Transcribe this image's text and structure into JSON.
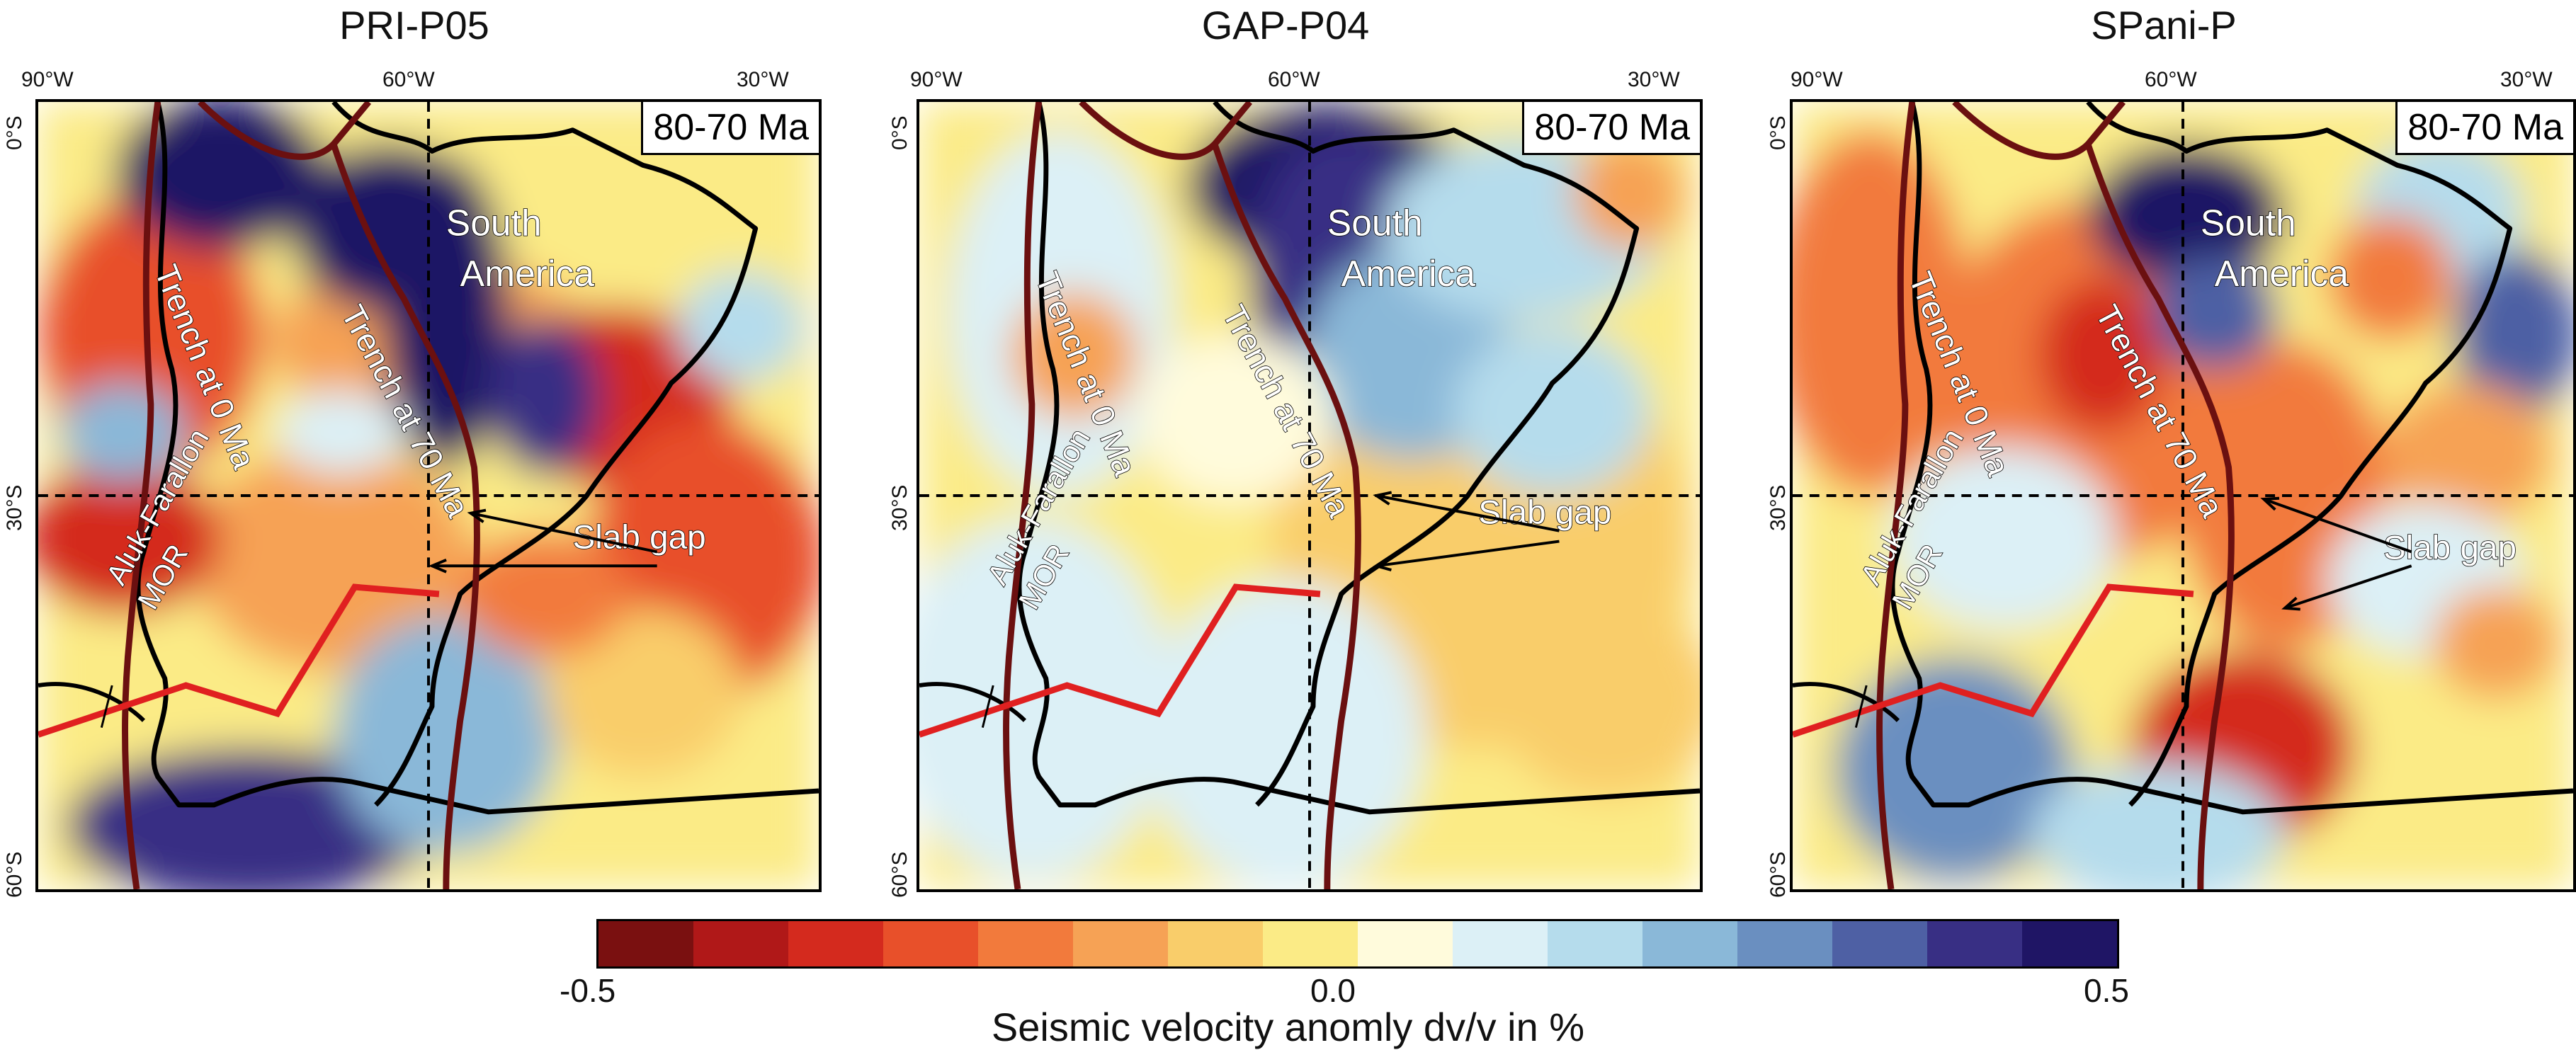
{
  "panels": [
    {
      "title": "PRI-P05",
      "period": "80-70 Ma",
      "lon_labels": [
        "90°W",
        "60°W",
        "30°W"
      ],
      "lat_labels": [
        "0°S",
        "30°S",
        "60°S"
      ],
      "labels": {
        "trench0": "Trench at 0 Ma",
        "trench70": "Trench at 70 Ma",
        "continent1": "South",
        "continent2": "America",
        "slab_gap": "Slab gap",
        "ridge1": "Aluk-Farallon",
        "ridge2": "MOR"
      }
    },
    {
      "title": "GAP-P04",
      "period": "80-70 Ma",
      "lon_labels": [
        "90°W",
        "60°W",
        "30°W"
      ],
      "lat_labels": [
        "0°S",
        "30°S",
        "60°S"
      ],
      "labels": {
        "trench0": "Trench at 0 Ma",
        "trench70": "Trench at 70 Ma",
        "continent1": "South",
        "continent2": "America",
        "slab_gap": "Slab gap",
        "ridge1": "Aluk-Farallon",
        "ridge2": "MOR"
      }
    },
    {
      "title": "SPani-P",
      "period": "80-70 Ma",
      "lon_labels": [
        "90°W",
        "60°W",
        "30°W"
      ],
      "lat_labels": [
        "0°S",
        "30°S",
        "60°S"
      ],
      "labels": {
        "trench0": "Trench at 0 Ma",
        "trench70": "Trench at 70 Ma",
        "continent1": "South",
        "continent2": "America",
        "slab_gap": "Slab gap",
        "ridge1": "Aluk-Farallon",
        "ridge2": "MOR"
      }
    }
  ],
  "colorbar": {
    "min_label": "-0.5",
    "mid_label": "0.0",
    "max_label": "0.5",
    "label": "Seismic velocity anomly dv/v in %",
    "colors": [
      "#7a1010",
      "#b01818",
      "#d42a1e",
      "#e8502a",
      "#f27a3c",
      "#f6a255",
      "#f9cd6a",
      "#fbeb86",
      "#fffbdc",
      "#dcf0f6",
      "#b5dcec",
      "#8ab8d8",
      "#6a8fc0",
      "#4e60a4",
      "#382f84",
      "#1f1565"
    ]
  },
  "colors": {
    "trench": "#6b1010",
    "ridge": "#e02020",
    "coast": "#000000",
    "grid": "#000000"
  }
}
